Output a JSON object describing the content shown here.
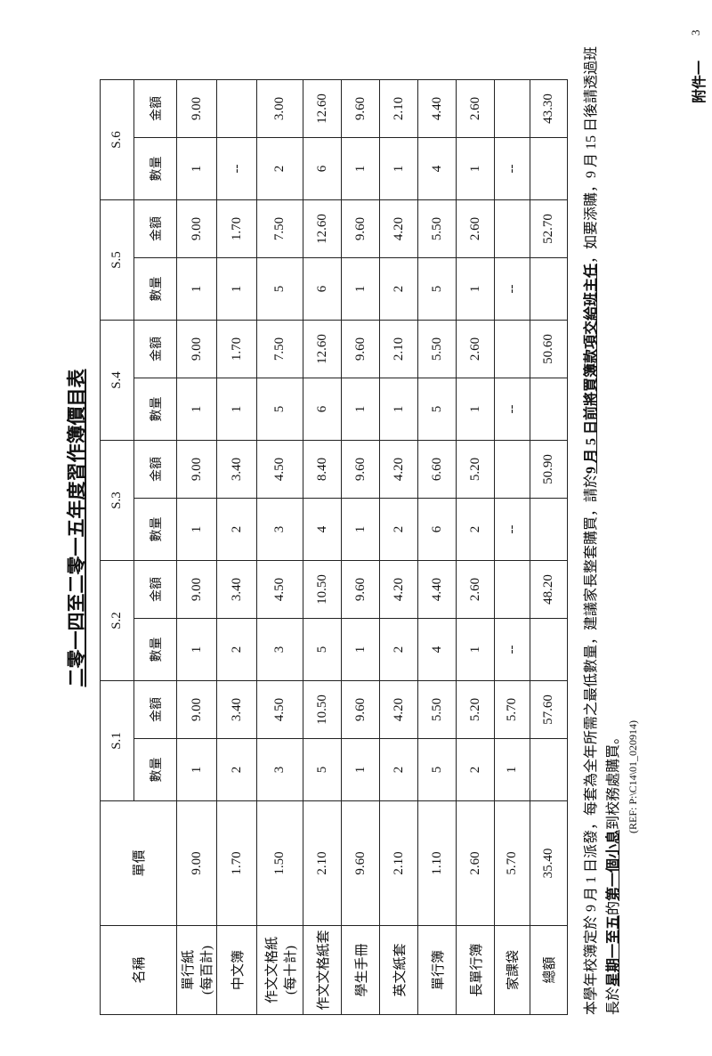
{
  "header": {
    "attachment": "附件一",
    "page_number": "3",
    "title": "二零一四至二零一五年度習作簿價目表"
  },
  "table": {
    "columns": [
      "名稱",
      "單價"
    ],
    "groups": [
      "S.1",
      "S.2",
      "S.3",
      "S.4",
      "S.5",
      "S.6"
    ],
    "sub": [
      "數量",
      "金額"
    ],
    "rows": [
      {
        "name": "單行紙",
        "note": "(每百計)",
        "price": "9.00",
        "cells": [
          "1",
          "9.00",
          "1",
          "9.00",
          "1",
          "9.00",
          "1",
          "9.00",
          "1",
          "9.00",
          "1",
          "9.00"
        ]
      },
      {
        "name": "中文簿",
        "price": "1.70",
        "cells": [
          "2",
          "3.40",
          "2",
          "3.40",
          "2",
          "3.40",
          "1",
          "1.70",
          "1",
          "1.70",
          "--",
          null
        ]
      },
      {
        "name": "作文文格紙",
        "note": "(每十計)",
        "price": "1.50",
        "cells": [
          "3",
          "4.50",
          "3",
          "4.50",
          "3",
          "4.50",
          "5",
          "7.50",
          "5",
          "7.50",
          "2",
          "3.00"
        ]
      },
      {
        "name": "作文文格紙套",
        "price": "2.10",
        "cells": [
          "5",
          "10.50",
          "5",
          "10.50",
          "4",
          "8.40",
          "6",
          "12.60",
          "6",
          "12.60",
          "6",
          "12.60"
        ]
      },
      {
        "name": "學生手冊",
        "price": "9.60",
        "cells": [
          "1",
          "9.60",
          "1",
          "9.60",
          "1",
          "9.60",
          "1",
          "9.60",
          "1",
          "9.60",
          "1",
          "9.60"
        ]
      },
      {
        "name": "英文紙套",
        "price": "2.10",
        "cells": [
          "2",
          "4.20",
          "2",
          "4.20",
          "2",
          "4.20",
          "1",
          "2.10",
          "2",
          "4.20",
          "1",
          "2.10"
        ]
      },
      {
        "name": "單行簿",
        "price": "1.10",
        "cells": [
          "5",
          "5.50",
          "4",
          "4.40",
          "6",
          "6.60",
          "5",
          "5.50",
          "5",
          "5.50",
          "4",
          "4.40"
        ]
      },
      {
        "name": "長單行簿",
        "price": "2.60",
        "cells": [
          "2",
          "5.20",
          "1",
          "2.60",
          "2",
          "5.20",
          "1",
          "2.60",
          "1",
          "2.60",
          "1",
          "2.60"
        ]
      },
      {
        "name": "家課袋",
        "price": "5.70",
        "cells": [
          "1",
          "5.70",
          "--",
          null,
          "--",
          null,
          "--",
          null,
          "--",
          null,
          "--",
          null
        ]
      },
      {
        "name": "總額",
        "price": "35.40",
        "cells": [
          null,
          "57.60",
          null,
          "48.20",
          null,
          "50.90",
          null,
          "50.60",
          null,
          "52.70",
          null,
          "43.30"
        ]
      }
    ]
  },
  "footer": {
    "lines": [
      [
        {
          "text": "本學年校簿定於 9 月 1 日派發，每套為全年所需之最低數量，建議家長整套購買，請於",
          "underline": false
        },
        {
          "text": "9 月 5 日前將買簿款項交給班主任",
          "underline": true
        },
        {
          "text": "，如要添購，9 月 15 日後請透過班",
          "underline": false
        }
      ],
      [
        {
          "text": "長於",
          "underline": false
        },
        {
          "text": "星期一至五",
          "underline": true
        },
        {
          "text": "的",
          "underline": false
        },
        {
          "text": "第一個小息",
          "underline": true
        },
        {
          "text": "到校務處購買。",
          "underline": false
        }
      ]
    ],
    "ref": "(REF: P:\\C14\\01_020914)"
  }
}
